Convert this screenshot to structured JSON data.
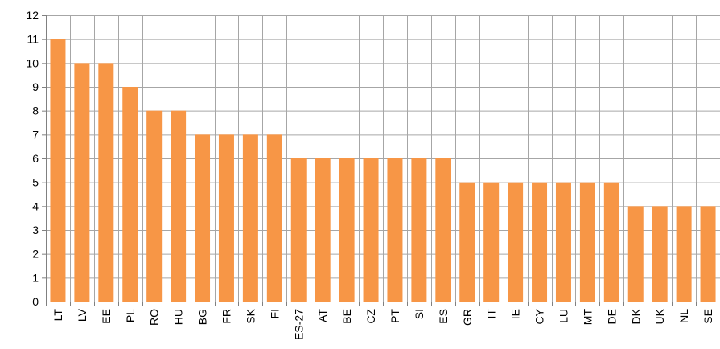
{
  "chart_data": {
    "type": "bar",
    "categories": [
      "LT",
      "LV",
      "EE",
      "PL",
      "RO",
      "HU",
      "BG",
      "FR",
      "SK",
      "FI",
      "ES-27",
      "AT",
      "BE",
      "CZ",
      "PT",
      "SI",
      "ES",
      "GR",
      "IT",
      "IE",
      "CY",
      "LU",
      "MT",
      "DE",
      "DK",
      "UK",
      "NL",
      "SE"
    ],
    "values": [
      11,
      10,
      10,
      9,
      8,
      8,
      7,
      7,
      7,
      7,
      6,
      6,
      6,
      6,
      6,
      6,
      6,
      5,
      5,
      5,
      5,
      5,
      5,
      5,
      4,
      4,
      4,
      4
    ],
    "title": "",
    "xlabel": "",
    "ylabel": "",
    "ylim": [
      0,
      12
    ],
    "yticks": [
      "0",
      "1",
      "2",
      "3",
      "4",
      "5",
      "6",
      "7",
      "8",
      "9",
      "10",
      "11",
      "12"
    ],
    "grid": true,
    "legend": "none",
    "bar_color": "#F79646",
    "grid_color": "#A6A6A6",
    "axis_color": "#808080"
  }
}
